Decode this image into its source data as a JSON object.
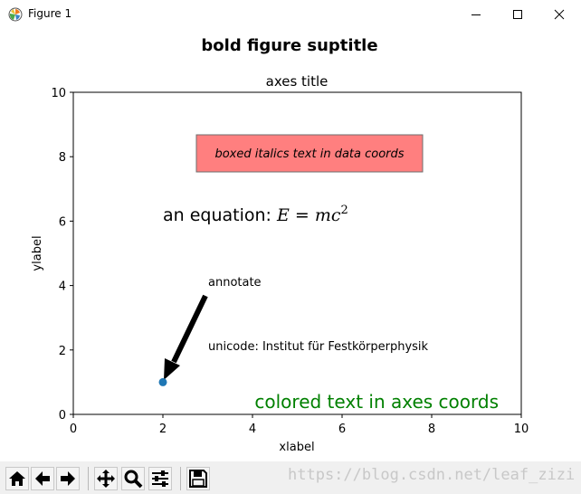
{
  "window": {
    "title": "Figure 1"
  },
  "figure": {
    "suptitle": "bold figure suptitle"
  },
  "chart_data": {
    "type": "scatter",
    "title": "axes title",
    "xlabel": "xlabel",
    "ylabel": "ylabel",
    "xlim": [
      0,
      10
    ],
    "ylim": [
      0,
      10
    ],
    "x_ticks": [
      "0",
      "2",
      "4",
      "6",
      "8",
      "10"
    ],
    "y_ticks": [
      "0",
      "2",
      "4",
      "6",
      "8",
      "10"
    ],
    "points": [
      {
        "x": 2,
        "y": 1
      }
    ],
    "grid": false,
    "point_color": "#1f77b4",
    "annotations": {
      "boxed_text": "boxed italics text in data coords",
      "boxed_text_anchor": {
        "x": 3,
        "y": 8
      },
      "box_color": "#ff7f7f",
      "equation_prefix": "an equation: ",
      "equation_symbol": "E",
      "equation_rhs": " = mc",
      "equation_exponent": "2",
      "equation_anchor": {
        "x": 2,
        "y": 6
      },
      "unicode_text": "unicode: Institut für Festkörperphysik",
      "unicode_anchor": {
        "x": 3,
        "y": 2
      },
      "annotate_text": "annotate",
      "annotate_text_anchor": {
        "x": 3,
        "y": 4
      },
      "annotate_arrow_target": {
        "x": 2,
        "y": 1
      },
      "colored_text": "colored text in axes coords",
      "colored_text_color": "#008000"
    }
  },
  "toolbar": {
    "buttons": [
      {
        "name": "home-button",
        "icon": "home-icon"
      },
      {
        "name": "back-button",
        "icon": "arrow-left-icon"
      },
      {
        "name": "forward-button",
        "icon": "arrow-right-icon"
      },
      {
        "name": "pan-button",
        "icon": "move-icon"
      },
      {
        "name": "zoom-button",
        "icon": "magnifier-icon"
      },
      {
        "name": "configure-subplots-button",
        "icon": "sliders-icon"
      },
      {
        "name": "save-button",
        "icon": "floppy-disk-icon"
      }
    ]
  },
  "watermark": {
    "text": "https://blog.csdn.net/leaf_zizi"
  }
}
